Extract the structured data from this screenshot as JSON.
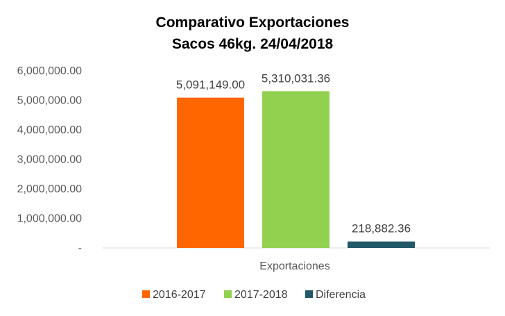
{
  "chart_data": {
    "type": "bar",
    "title": [
      "Comparativo Exportaciones",
      "Sacos 46kg. 24/04/2018"
    ],
    "categories": [
      "Exportaciones"
    ],
    "series": [
      {
        "name": "2016-2017",
        "values": [
          5091149.0
        ],
        "label": "5,091,149.00",
        "color": "#FF6600"
      },
      {
        "name": "2017-2018",
        "values": [
          5310031.36
        ],
        "label": "5,310,031.36",
        "color": "#92D050"
      },
      {
        "name": "Diferencia",
        "values": [
          218882.36
        ],
        "label": "218,882.36",
        "color": "#215968"
      }
    ],
    "ylim": [
      0,
      6000000
    ],
    "yticks": [
      0,
      1000000,
      2000000,
      3000000,
      4000000,
      5000000,
      6000000
    ],
    "ytick_labels": [
      "-",
      "1,000,000.00",
      "2,000,000.00",
      "3,000,000.00",
      "4,000,000.00",
      "5,000,000.00",
      "6,000,000.00"
    ],
    "grid": false,
    "legend_position": "bottom",
    "xlabel": "",
    "ylabel": ""
  }
}
